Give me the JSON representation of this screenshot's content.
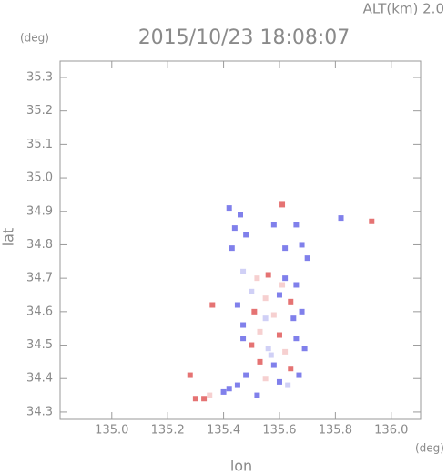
{
  "chart_data": {
    "type": "scatter",
    "title": "2015/10/23 18:08:07",
    "annotation": "ALT(km) 2.0",
    "y_unit": "(deg)",
    "x_unit": "(deg)",
    "x_label": "lon",
    "y_label": "lat",
    "xlim": [
      134.815,
      136.105
    ],
    "ylim": [
      34.278,
      35.349
    ],
    "xticks": [
      {
        "value": 135,
        "label": "135.0"
      },
      135.2,
      135.4,
      135.6,
      135.8,
      {
        "value": 136,
        "label": "136.0"
      }
    ],
    "yticks": [
      34.3,
      34.4,
      34.5,
      34.6,
      34.7,
      34.8,
      34.9,
      {
        "value": 35,
        "label": "35.0"
      },
      35.1,
      35.2,
      35.3
    ],
    "x": [
      135.42,
      135.46,
      135.61,
      135.44,
      135.48,
      135.43,
      135.58,
      135.66,
      135.62,
      135.68,
      135.7,
      135.82,
      135.93,
      135.47,
      135.52,
      135.56,
      135.62,
      135.66,
      135.5,
      135.55,
      135.6,
      135.64,
      135.45,
      135.51,
      135.58,
      135.65,
      135.68,
      135.36,
      135.47,
      135.53,
      135.6,
      135.66,
      135.5,
      135.56,
      135.62,
      135.69,
      135.53,
      135.58,
      135.64,
      135.67,
      135.55,
      135.6,
      135.48,
      135.45,
      135.4,
      135.35,
      135.3,
      135.33,
      135.28,
      135.42,
      135.57,
      135.55,
      135.61,
      135.47,
      135.63,
      135.52
    ],
    "values": [
      34.91,
      34.89,
      34.92,
      34.85,
      34.83,
      34.79,
      34.86,
      34.86,
      34.79,
      34.8,
      34.76,
      34.88,
      34.87,
      34.72,
      34.7,
      34.71,
      34.7,
      34.68,
      34.66,
      34.64,
      34.65,
      34.63,
      34.62,
      34.6,
      34.59,
      34.58,
      34.6,
      34.62,
      34.56,
      34.54,
      34.53,
      34.52,
      34.5,
      34.49,
      34.48,
      34.49,
      34.45,
      34.44,
      34.43,
      34.41,
      34.4,
      34.39,
      34.41,
      34.38,
      34.36,
      34.35,
      34.34,
      34.34,
      34.41,
      34.37,
      34.47,
      34.58,
      34.68,
      34.52,
      34.38,
      34.35
    ],
    "colors": [
      "#6a6ae8",
      "#6a6ae8",
      "#e05a5a",
      "#6a6ae8",
      "#6a6ae8",
      "#6a6ae8",
      "#6a6ae8",
      "#6a6ae8",
      "#6a6ae8",
      "#6a6ae8",
      "#6a6ae8",
      "#6a6ae8",
      "#e05a5a",
      "#c8c8f4",
      "#f4c8c8",
      "#e05a5a",
      "#6a6ae8",
      "#6a6ae8",
      "#c8c8f4",
      "#f4c8c8",
      "#6a6ae8",
      "#e05a5a",
      "#6a6ae8",
      "#e05a5a",
      "#f4c8c8",
      "#6a6ae8",
      "#6a6ae8",
      "#e05a5a",
      "#6a6ae8",
      "#f4c8c8",
      "#e05a5a",
      "#6a6ae8",
      "#e05a5a",
      "#c8c8f4",
      "#f4c8c8",
      "#6a6ae8",
      "#e05a5a",
      "#6a6ae8",
      "#e05a5a",
      "#6a6ae8",
      "#f4c8c8",
      "#6a6ae8",
      "#6a6ae8",
      "#6a6ae8",
      "#6a6ae8",
      "#f4c8c8",
      "#e05a5a",
      "#e05a5a",
      "#e05a5a",
      "#6a6ae8",
      "#c8c8f4",
      "#c8c8f4",
      "#f4c8c8",
      "#6a6ae8",
      "#c8c8f4",
      "#6a6ae8"
    ]
  }
}
